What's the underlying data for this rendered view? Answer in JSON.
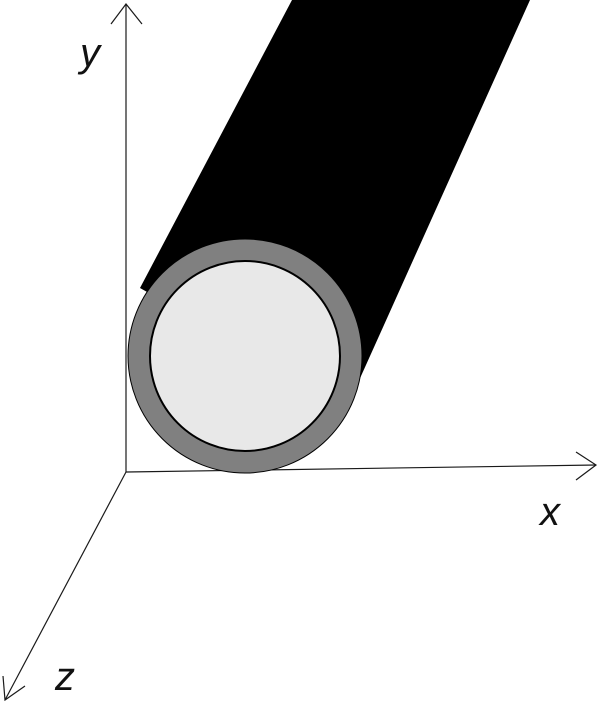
{
  "axes": {
    "x_label": "x",
    "y_label": "y",
    "z_label": "z"
  },
  "colors": {
    "cylinder_body": "#000000",
    "tube_wall": "#808080",
    "tube_interior": "#e8e8e8",
    "axis": "#1a1a1a",
    "background": "#ffffff"
  }
}
